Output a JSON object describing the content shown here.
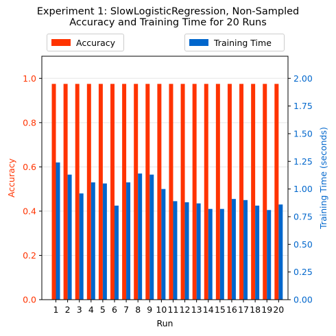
{
  "chart_data": {
    "type": "bar",
    "title_lines": [
      "Experiment 1: SlowLogisticRegression, Non-Sampled",
      "Accuracy and Training Time for 20 Runs"
    ],
    "xlabel": "Run",
    "categories": [
      "1",
      "2",
      "3",
      "4",
      "5",
      "6",
      "7",
      "8",
      "9",
      "10",
      "11",
      "12",
      "13",
      "14",
      "15",
      "16",
      "17",
      "18",
      "19",
      "20"
    ],
    "series": [
      {
        "name": "Accuracy",
        "axis": "left",
        "color": "#ff3300",
        "values": [
          0.975,
          0.975,
          0.975,
          0.975,
          0.975,
          0.975,
          0.975,
          0.975,
          0.975,
          0.975,
          0.975,
          0.975,
          0.975,
          0.975,
          0.975,
          0.975,
          0.975,
          0.975,
          0.975,
          0.975
        ]
      },
      {
        "name": "Training Time",
        "axis": "right",
        "color": "#0066cc",
        "values": [
          1.24,
          1.13,
          0.96,
          1.06,
          1.05,
          0.85,
          1.06,
          1.14,
          1.13,
          1.0,
          0.89,
          0.88,
          0.87,
          0.82,
          0.82,
          0.91,
          0.9,
          0.85,
          0.81,
          0.86
        ]
      }
    ],
    "left_axis": {
      "label": "Accuracy",
      "color": "#ff3300",
      "ylim": [
        0,
        1.1
      ],
      "ticks": [
        "0.0",
        "0.2",
        "0.4",
        "0.6",
        "0.8",
        "1.0"
      ]
    },
    "right_axis": {
      "label": "Training Time (seconds)",
      "color": "#0066cc",
      "ylim": [
        0,
        2.2
      ],
      "ticks": [
        "0.00",
        "0.25",
        "0.50",
        "0.75",
        "1.00",
        "1.25",
        "1.50",
        "1.75",
        "2.00"
      ]
    },
    "grid": "horizontal",
    "legend_placement": "above plot, two boxes (left and right)"
  }
}
